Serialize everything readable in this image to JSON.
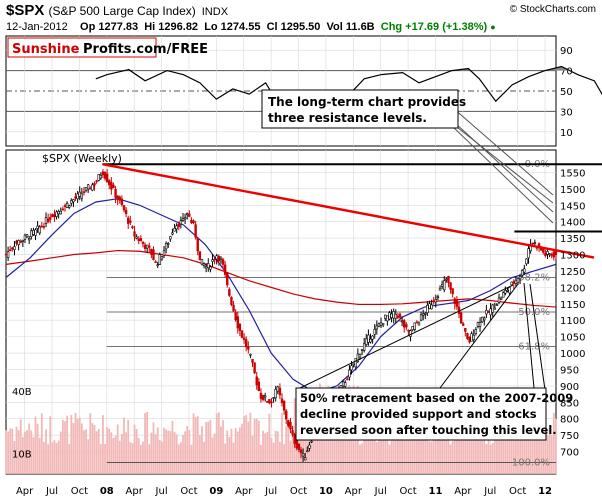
{
  "header": {
    "symbol": "$SPX",
    "description": "(S&P 500 Large Cap Index)",
    "exchange": "INDX",
    "copyright": "© StockCharts.com",
    "date": "12-Jan-2012",
    "open": "Op 1277.83",
    "high": "Hi 1296.82",
    "low": "Lo 1274.55",
    "close": "Cl 1295.50",
    "volume": "Vol 11.6B",
    "change": "Chg +17.69 (+1.38%)",
    "change_icon": "up-dot-icon"
  },
  "watermark": {
    "part1": "Sunshine",
    "part2": "Profits.com/FREE"
  },
  "colors": {
    "price_up": "#000000",
    "price_down": "#cc0000",
    "ma_short": "#2020a0",
    "ma_long": "#cc0000",
    "trendline": "#ee0000",
    "volume_bar": "#f2b8b8",
    "rsi_line": "#000000",
    "rsi_fill_high": "#888888",
    "rsi_fill_low": "#b06060",
    "grid": "#d9d9d9"
  },
  "annotations": {
    "resistance_line1": "The long-term chart provides",
    "resistance_line2": "three resistance levels.",
    "retracement_line1": "50% retracement based on the 2007-2009",
    "retracement_line2": "decline provided support and stocks",
    "retracement_line3": "reversed soon after touching this level."
  },
  "chart_data": [
    {
      "type": "line",
      "panel": "rsi",
      "ylim": [
        0,
        100
      ],
      "yticks": [
        10,
        30,
        50,
        70,
        90
      ],
      "reference_lines": [
        30,
        50,
        70
      ],
      "x": [
        2006.9,
        2007.0,
        2007.2,
        2007.35,
        2007.55,
        2007.7,
        2007.85,
        2008.0,
        2008.15,
        2008.3,
        2008.45,
        2008.55,
        2008.65,
        2008.78,
        2008.9,
        2009.05,
        2009.2,
        2009.35,
        2009.5,
        2009.7,
        2009.85,
        2010.0,
        2010.15,
        2010.3,
        2010.4,
        2010.55,
        2010.7,
        2010.85,
        2011.0,
        2011.15,
        2011.3,
        2011.45,
        2011.6,
        2011.7,
        2011.85,
        2012.03
      ],
      "values": [
        62,
        66,
        71,
        60,
        70,
        66,
        58,
        42,
        52,
        47,
        58,
        40,
        32,
        20,
        28,
        36,
        45,
        62,
        66,
        68,
        58,
        64,
        70,
        72,
        62,
        40,
        56,
        64,
        70,
        74,
        66,
        60,
        32,
        44,
        54,
        56
      ]
    },
    {
      "type": "candlestick",
      "panel": "price",
      "title": "$SPX (Weekly)",
      "ylim": [
        650,
        1600
      ],
      "yticks": [
        700,
        750,
        800,
        850,
        900,
        950,
        1000,
        1050,
        1100,
        1150,
        1200,
        1250,
        1300,
        1350,
        1400,
        1450,
        1500,
        1550
      ],
      "x_tick_labels": [
        "Apr",
        "Jul",
        "Oct",
        "08",
        "Apr",
        "Jul",
        "Oct",
        "09",
        "Apr",
        "Jul",
        "Oct",
        "10",
        "Apr",
        "Jul",
        "Oct",
        "11",
        "Apr",
        "Jul",
        "Oct",
        "12"
      ],
      "x_tick_values": [
        2006.25,
        2006.5,
        2006.75,
        2007.0,
        2007.25,
        2007.5,
        2007.75,
        2008.0,
        2008.25,
        2008.5,
        2008.75,
        2009.0,
        2009.25,
        2009.5,
        2009.75,
        2010.0,
        2010.25,
        2010.5,
        2010.75,
        2011.0
      ],
      "x_range": [
        2006.08,
        2011.1
      ],
      "close_anchors": {
        "x": [
          2006.08,
          2006.15,
          2006.35,
          2006.5,
          2006.75,
          2006.9,
          2006.96,
          2007.05,
          2007.15,
          2007.25,
          2007.4,
          2007.45,
          2007.55,
          2007.62,
          2007.7,
          2007.73,
          2007.8,
          2007.85,
          2007.92,
          2008.0,
          2008.05,
          2008.1,
          2008.2,
          2008.3,
          2008.4,
          2008.5,
          2008.55,
          2008.62,
          2008.7,
          2008.8,
          2008.9,
          2009.0,
          2009.1,
          2009.2,
          2009.3,
          2009.4,
          2009.55,
          2009.65,
          2009.75,
          2009.85,
          2010.0,
          2010.1,
          2010.2,
          2010.25,
          2010.3,
          2010.4,
          2010.5,
          2010.62,
          2010.7,
          2010.8,
          2010.85,
          2010.88,
          2010.95,
          2011.0,
          2011.1
        ],
        "y": [
          1300,
          1330,
          1370,
          1420,
          1480,
          1520,
          1555,
          1500,
          1440,
          1360,
          1310,
          1270,
          1330,
          1390,
          1400,
          1430,
          1380,
          1280,
          1260,
          1300,
          1280,
          1200,
          1080,
          1000,
          870,
          850,
          900,
          820,
          740,
          680,
          770,
          830,
          870,
          930,
          1000,
          1050,
          1110,
          1120,
          1060,
          1100,
          1170,
          1225,
          1135,
          1080,
          1030,
          1100,
          1130,
          1180,
          1210,
          1250,
          1320,
          1340,
          1320,
          1300,
          1300
        ]
      },
      "moving_averages": [
        {
          "color_key": "ma_short",
          "x": [
            2006.08,
            2006.3,
            2006.5,
            2006.7,
            2006.9,
            2007.1,
            2007.3,
            2007.5,
            2007.7,
            2007.9,
            2008.1,
            2008.3,
            2008.5,
            2008.7,
            2008.9,
            2009.1,
            2009.3,
            2009.5,
            2009.7,
            2009.9,
            2010.1,
            2010.3,
            2010.5,
            2010.7,
            2010.9,
            2011.1
          ],
          "y": [
            1230,
            1290,
            1360,
            1425,
            1460,
            1470,
            1450,
            1420,
            1390,
            1330,
            1240,
            1130,
            1000,
            920,
            880,
            900,
            960,
            1050,
            1110,
            1140,
            1150,
            1160,
            1190,
            1230,
            1250,
            1270
          ]
        },
        {
          "color_key": "ma_long",
          "x": [
            2006.08,
            2006.3,
            2006.5,
            2006.7,
            2006.9,
            2007.1,
            2007.3,
            2007.5,
            2007.7,
            2007.9,
            2008.1,
            2008.3,
            2008.5,
            2008.7,
            2008.9,
            2009.1,
            2009.3,
            2009.5,
            2009.7,
            2009.9,
            2010.1,
            2010.3,
            2010.5,
            2010.7,
            2010.9,
            2011.1
          ],
          "y": [
            1270,
            1280,
            1290,
            1300,
            1305,
            1312,
            1310,
            1300,
            1290,
            1270,
            1245,
            1220,
            1200,
            1180,
            1165,
            1155,
            1148,
            1148,
            1150,
            1155,
            1160,
            1165,
            1160,
            1152,
            1145,
            1140
          ]
        }
      ],
      "trendline": {
        "x": [
          2006.96,
          2011.1
        ],
        "y": [
          1575,
          1300
        ]
      },
      "resistance_lines": [
        {
          "x": [
            2006.96,
            2011.1
          ],
          "y": [
            1575,
            1575
          ]
        },
        {
          "x": [
            2010.72,
            2011.1
          ],
          "y": [
            1370,
            1370
          ]
        }
      ],
      "fibonacci": {
        "x": [
          2007.0,
          2011.1
        ],
        "levels": [
          {
            "label": "0.0%",
            "y": 1576
          },
          {
            "label": "38.2%",
            "y": 1230
          },
          {
            "label": "50.0%",
            "y": 1125
          },
          {
            "label": "61.8%",
            "y": 1020
          },
          {
            "label": "100.0%",
            "y": 667
          }
        ]
      },
      "volume": {
        "yticks": [
          {
            "label": "10B",
            "value": 10
          },
          {
            "label": "40B",
            "value": 40
          }
        ],
        "ylim": [
          0,
          55
        ]
      }
    }
  ]
}
